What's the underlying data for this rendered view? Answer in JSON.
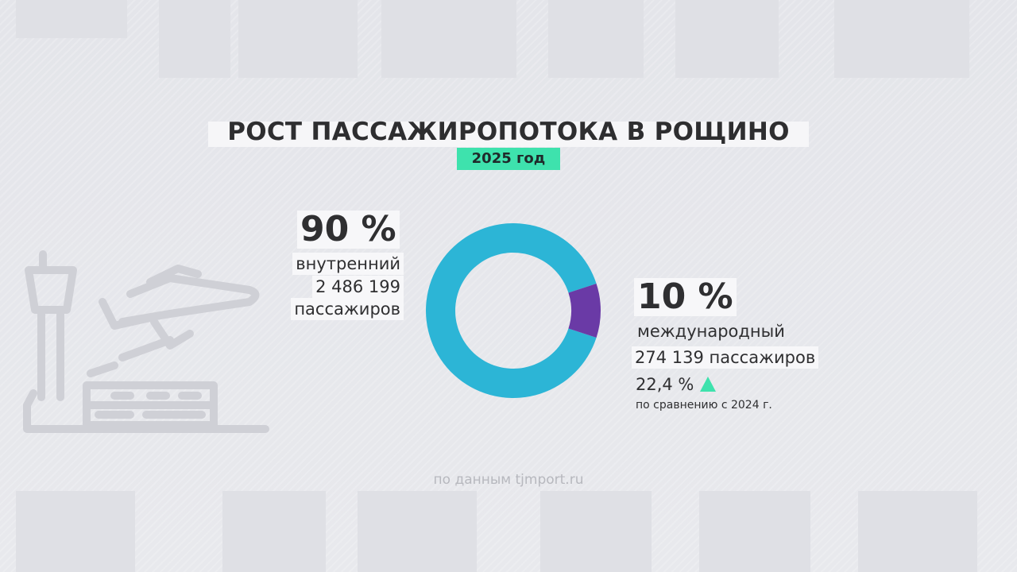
{
  "title": "РОСТ ПАССАЖИРОПОТОКА В РОЩИНО",
  "subtitle": "2025 год",
  "domestic": {
    "percent_label": "90 %",
    "label": "внутренний",
    "count": "2 486 199",
    "unit": "пассажиров"
  },
  "international": {
    "percent_label": "10 %",
    "label": "международный",
    "count": "274 139 пассажиров",
    "growth": "22,4 %",
    "growth_note": "по сравнению с 2024 г."
  },
  "source": "по данным tjmport.ru",
  "colors": {
    "domestic": "#2cb5d6",
    "international": "#6a3aa6",
    "accent": "#3ee2ad",
    "text": "#2f2f31"
  },
  "chart_data": {
    "type": "pie",
    "title": "РОСТ ПАССАЖИРОПОТОКА В РОЩИНО",
    "subtitle": "2025 год",
    "donut": true,
    "slices": [
      {
        "name": "внутренний",
        "percent": 90,
        "passengers": 2486199
      },
      {
        "name": "международный",
        "percent": 10,
        "passengers": 274139
      }
    ],
    "annotations": [
      "22,4 %",
      "по сравнению с 2024 г."
    ]
  }
}
